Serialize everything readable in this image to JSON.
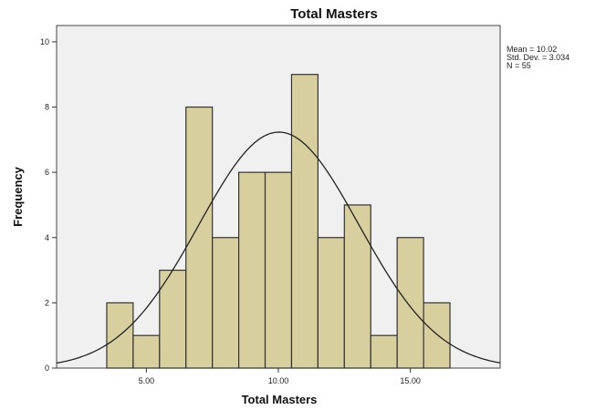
{
  "chart_data": {
    "type": "bar",
    "title": "Total Masters",
    "xlabel": "Total Masters",
    "ylabel": "Frequency",
    "bin_width": 1,
    "bins": [
      {
        "start": 3.5,
        "end": 4.5,
        "count": 2
      },
      {
        "start": 4.5,
        "end": 5.5,
        "count": 1
      },
      {
        "start": 5.5,
        "end": 6.5,
        "count": 3
      },
      {
        "start": 6.5,
        "end": 7.5,
        "count": 8
      },
      {
        "start": 7.5,
        "end": 8.5,
        "count": 4
      },
      {
        "start": 8.5,
        "end": 9.5,
        "count": 6
      },
      {
        "start": 9.5,
        "end": 10.5,
        "count": 6
      },
      {
        "start": 10.5,
        "end": 11.5,
        "count": 9
      },
      {
        "start": 11.5,
        "end": 12.5,
        "count": 4
      },
      {
        "start": 12.5,
        "end": 13.5,
        "count": 5
      },
      {
        "start": 13.5,
        "end": 14.5,
        "count": 1
      },
      {
        "start": 14.5,
        "end": 15.5,
        "count": 4
      },
      {
        "start": 15.5,
        "end": 16.5,
        "count": 2
      }
    ],
    "xlim": [
      1.6,
      18.4
    ],
    "ylim": [
      0,
      10.5
    ],
    "x_ticks": [
      5,
      10,
      15
    ],
    "x_tick_labels": [
      "5.00",
      "10.00",
      "15.00"
    ],
    "y_ticks": [
      0,
      2,
      4,
      6,
      8,
      10
    ],
    "y_tick_labels": [
      "0",
      "2",
      "4",
      "6",
      "8",
      "10"
    ],
    "normal_curve": {
      "mean": 10.02,
      "sd": 3.034,
      "n": 55
    },
    "stats": {
      "mean_label": "Mean = 10.02",
      "sd_label": "Std. Dev. = 3.034",
      "n_label": "N = 55"
    },
    "grid": false,
    "legend_position": "top-right",
    "colors": {
      "bar_fill": "#d8cf9e",
      "plot_background": "#f0f0f0",
      "curve": "#222222"
    }
  }
}
